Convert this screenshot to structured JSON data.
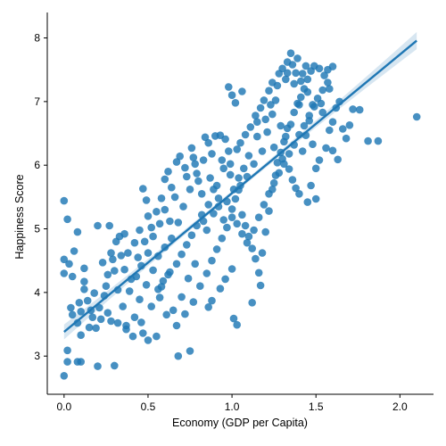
{
  "chart_data": {
    "type": "scatter",
    "title": "",
    "xlabel": "Economy (GDP per Capita)",
    "ylabel": "Happiness Score",
    "xlim": [
      -0.1,
      2.2
    ],
    "ylim": [
      2.4,
      8.4
    ],
    "x_ticks": [
      0.0,
      0.5,
      1.0,
      1.5,
      2.0
    ],
    "x_tick_labels": [
      "0.0",
      "0.5",
      "1.0",
      "1.5",
      "2.0"
    ],
    "y_ticks": [
      3,
      4,
      5,
      6,
      7,
      8
    ],
    "y_tick_labels": [
      "3",
      "4",
      "5",
      "6",
      "7",
      "8"
    ],
    "grid": false,
    "point_color": "#1f77b4",
    "regression": {
      "intercept": 3.38,
      "slope": 2.18,
      "x_range": [
        0.0,
        2.1
      ]
    },
    "points": [
      [
        0.0,
        2.69
      ],
      [
        0.02,
        2.91
      ],
      [
        0.02,
        3.09
      ],
      [
        0.08,
        2.91
      ],
      [
        0.1,
        2.91
      ],
      [
        0.2,
        2.84
      ],
      [
        0.3,
        2.85
      ],
      [
        0.68,
        3.0
      ],
      [
        0.75,
        3.08
      ],
      [
        0.05,
        3.65
      ],
      [
        0.0,
        5.44
      ],
      [
        0.02,
        5.15
      ],
      [
        0.08,
        4.95
      ],
      [
        0.2,
        5.05
      ],
      [
        0.27,
        5.05
      ],
      [
        0.0,
        4.3
      ],
      [
        0.04,
        3.76
      ],
      [
        0.0,
        4.52
      ],
      [
        0.05,
        4.25
      ],
      [
        0.12,
        4.17
      ],
      [
        0.09,
        3.84
      ],
      [
        0.16,
        3.72
      ],
      [
        0.18,
        3.99
      ],
      [
        0.23,
        4.47
      ],
      [
        0.25,
        4.1
      ],
      [
        0.3,
        4.34
      ],
      [
        0.32,
        4.04
      ],
      [
        0.35,
        3.78
      ],
      [
        0.28,
        3.55
      ],
      [
        0.19,
        3.44
      ],
      [
        0.37,
        3.48
      ],
      [
        0.42,
        3.61
      ],
      [
        0.47,
        3.36
      ],
      [
        0.5,
        3.25
      ],
      [
        0.55,
        3.31
      ],
      [
        0.45,
        3.89
      ],
      [
        0.4,
        4.21
      ],
      [
        0.38,
        4.62
      ],
      [
        0.33,
        4.88
      ],
      [
        0.36,
        4.92
      ],
      [
        0.44,
        4.55
      ],
      [
        0.48,
        4.8
      ],
      [
        0.52,
        5.02
      ],
      [
        0.56,
        4.57
      ],
      [
        0.6,
        4.71
      ],
      [
        0.62,
        4.28
      ],
      [
        0.58,
        4.09
      ],
      [
        0.65,
        3.72
      ],
      [
        0.7,
        3.93
      ],
      [
        0.74,
        4.22
      ],
      [
        0.78,
        4.45
      ],
      [
        0.55,
        5.27
      ],
      [
        0.5,
        5.2
      ],
      [
        0.49,
        5.45
      ],
      [
        0.47,
        5.63
      ],
      [
        0.63,
        5.12
      ],
      [
        0.66,
        5.5
      ],
      [
        0.6,
        5.78
      ],
      [
        0.62,
        5.9
      ],
      [
        0.67,
        6.05
      ],
      [
        0.69,
        6.14
      ],
      [
        0.72,
        5.96
      ],
      [
        0.76,
        6.27
      ],
      [
        0.78,
        6.02
      ],
      [
        0.8,
        5.75
      ],
      [
        0.82,
        5.55
      ],
      [
        0.84,
        6.44
      ],
      [
        0.86,
        6.35
      ],
      [
        0.9,
        6.46
      ],
      [
        0.93,
        6.47
      ],
      [
        0.96,
        6.41
      ],
      [
        0.98,
        6.22
      ],
      [
        0.99,
        6.02
      ],
      [
        0.83,
        5.12
      ],
      [
        0.85,
        4.98
      ],
      [
        0.89,
        5.24
      ],
      [
        0.92,
        5.35
      ],
      [
        0.95,
        5.14
      ],
      [
        0.97,
        5.43
      ],
      [
        1.0,
        5.31
      ],
      [
        1.02,
        5.47
      ],
      [
        1.04,
        5.61
      ],
      [
        1.06,
        5.22
      ],
      [
        1.08,
        5.05
      ],
      [
        1.1,
        4.88
      ],
      [
        1.12,
        4.69
      ],
      [
        1.14,
        4.53
      ],
      [
        1.0,
        4.37
      ],
      [
        0.96,
        4.21
      ],
      [
        0.93,
        4.06
      ],
      [
        0.88,
        3.87
      ],
      [
        0.86,
        3.77
      ],
      [
        1.01,
        3.59
      ],
      [
        1.03,
        3.49
      ],
      [
        1.12,
        3.84
      ],
      [
        1.17,
        4.11
      ],
      [
        1.16,
        4.31
      ],
      [
        1.18,
        4.62
      ],
      [
        1.2,
        4.95
      ],
      [
        1.22,
        5.28
      ],
      [
        1.24,
        5.62
      ],
      [
        1.26,
        5.84
      ],
      [
        1.27,
        6.04
      ],
      [
        1.29,
        6.2
      ],
      [
        1.31,
        6.37
      ],
      [
        1.33,
        6.58
      ],
      [
        1.35,
        6.64
      ],
      [
        1.37,
        6.83
      ],
      [
        1.39,
        6.97
      ],
      [
        1.41,
        7.07
      ],
      [
        1.43,
        7.2
      ],
      [
        1.45,
        7.35
      ],
      [
        1.47,
        7.48
      ],
      [
        1.49,
        7.56
      ],
      [
        1.52,
        7.52
      ],
      [
        1.55,
        7.41
      ],
      [
        1.57,
        7.5
      ],
      [
        1.6,
        7.55
      ],
      [
        1.35,
        7.76
      ],
      [
        1.33,
        7.62
      ],
      [
        1.3,
        7.52
      ],
      [
        1.28,
        7.44
      ],
      [
        1.24,
        7.3
      ],
      [
        1.22,
        7.17
      ],
      [
        1.19,
        7.02
      ],
      [
        1.17,
        6.9
      ],
      [
        1.14,
        6.78
      ],
      [
        1.11,
        6.6
      ],
      [
        1.08,
        6.48
      ],
      [
        1.05,
        6.35
      ],
      [
        1.03,
        6.25
      ],
      [
        1.0,
        7.1
      ],
      [
        0.98,
        7.23
      ],
      [
        1.02,
        6.98
      ],
      [
        1.06,
        7.16
      ],
      [
        1.15,
        6.68
      ],
      [
        1.21,
        6.52
      ],
      [
        1.25,
        6.28
      ],
      [
        1.3,
        6.1
      ],
      [
        1.34,
        5.94
      ],
      [
        1.36,
        5.77
      ],
      [
        1.38,
        5.64
      ],
      [
        1.4,
        5.55
      ],
      [
        1.45,
        5.42
      ],
      [
        1.5,
        5.47
      ],
      [
        1.47,
        5.68
      ],
      [
        1.5,
        5.95
      ],
      [
        1.52,
        6.08
      ],
      [
        1.48,
        6.33
      ],
      [
        1.44,
        6.47
      ],
      [
        1.42,
        6.22
      ],
      [
        1.56,
        6.27
      ],
      [
        1.58,
        6.55
      ],
      [
        1.6,
        6.68
      ],
      [
        1.62,
        6.9
      ],
      [
        1.64,
        7.0
      ],
      [
        1.66,
        6.57
      ],
      [
        1.68,
        6.42
      ],
      [
        1.7,
        6.63
      ],
      [
        1.72,
        6.88
      ],
      [
        1.76,
        6.87
      ],
      [
        1.81,
        6.38
      ],
      [
        1.87,
        6.38
      ],
      [
        2.1,
        6.76
      ],
      [
        1.6,
        6.23
      ],
      [
        1.63,
        6.09
      ],
      [
        1.53,
        6.97
      ],
      [
        1.58,
        7.2
      ],
      [
        1.54,
        6.83
      ],
      [
        1.46,
        6.7
      ],
      [
        1.4,
        6.95
      ],
      [
        1.37,
        7.28
      ],
      [
        1.42,
        7.44
      ],
      [
        1.44,
        7.56
      ],
      [
        1.38,
        7.45
      ],
      [
        1.32,
        7.35
      ],
      [
        1.27,
        7.25
      ],
      [
        1.23,
        6.95
      ],
      [
        1.2,
        6.72
      ],
      [
        1.15,
        6.45
      ],
      [
        1.1,
        6.15
      ],
      [
        1.07,
        5.95
      ],
      [
        1.04,
        5.8
      ],
      [
        1.01,
        5.62
      ],
      [
        0.99,
        5.85
      ],
      [
        0.95,
        5.95
      ],
      [
        0.91,
        5.68
      ],
      [
        0.87,
        5.8
      ],
      [
        0.83,
        6.08
      ],
      [
        0.79,
        5.87
      ],
      [
        0.75,
        5.62
      ],
      [
        0.71,
        5.35
      ],
      [
        0.68,
        5.1
      ],
      [
        0.64,
        4.85
      ],
      [
        0.6,
        5.3
      ],
      [
        0.57,
        5.08
      ],
      [
        0.53,
        4.88
      ],
      [
        0.5,
        4.62
      ],
      [
        0.46,
        4.42
      ],
      [
        0.43,
        4.25
      ],
      [
        0.39,
        4.02
      ],
      [
        0.36,
        4.36
      ],
      [
        0.34,
        4.58
      ],
      [
        0.31,
        4.8
      ],
      [
        0.29,
        4.52
      ],
      [
        0.26,
        4.28
      ],
      [
        0.24,
        3.95
      ],
      [
        0.21,
        3.76
      ],
      [
        0.17,
        3.61
      ],
      [
        0.14,
        3.87
      ],
      [
        0.12,
        4.05
      ],
      [
        0.1,
        3.7
      ],
      [
        0.08,
        3.52
      ],
      [
        0.15,
        3.45
      ],
      [
        0.22,
        3.58
      ],
      [
        0.26,
        3.68
      ],
      [
        0.32,
        3.52
      ],
      [
        0.37,
        3.42
      ],
      [
        0.41,
        3.31
      ],
      [
        0.46,
        3.53
      ],
      [
        0.52,
        3.78
      ],
      [
        0.57,
        3.92
      ],
      [
        0.61,
        3.65
      ],
      [
        0.67,
        3.48
      ],
      [
        0.72,
        3.66
      ],
      [
        0.77,
        3.85
      ],
      [
        0.81,
        4.1
      ],
      [
        0.85,
        4.3
      ],
      [
        0.88,
        4.5
      ],
      [
        0.91,
        4.68
      ],
      [
        0.94,
        4.85
      ],
      [
        0.97,
        5.02
      ],
      [
        1.0,
        5.18
      ],
      [
        1.03,
        5.08
      ],
      [
        1.06,
        4.92
      ],
      [
        1.09,
        4.78
      ],
      [
        1.13,
        4.98
      ],
      [
        1.16,
        5.18
      ],
      [
        1.19,
        5.38
      ],
      [
        1.22,
        5.55
      ],
      [
        1.25,
        5.72
      ],
      [
        1.28,
        5.88
      ],
      [
        1.31,
        6.02
      ],
      [
        1.34,
        6.18
      ],
      [
        1.37,
        6.32
      ],
      [
        1.4,
        6.48
      ],
      [
        1.43,
        6.62
      ],
      [
        1.46,
        6.78
      ],
      [
        1.49,
        6.92
      ],
      [
        1.51,
        7.05
      ],
      [
        1.54,
        7.18
      ],
      [
        1.57,
        7.3
      ],
      [
        1.33,
        7.45
      ],
      [
        1.36,
        7.58
      ],
      [
        1.39,
        7.68
      ],
      [
        1.41,
        7.32
      ],
      [
        1.45,
        7.15
      ],
      [
        1.48,
        6.95
      ],
      [
        1.26,
        7.02
      ],
      [
        1.24,
        6.8
      ],
      [
        1.29,
        6.62
      ],
      [
        1.32,
        6.45
      ],
      [
        1.18,
        6.22
      ],
      [
        1.13,
        6.02
      ],
      [
        1.09,
        5.82
      ],
      [
        1.05,
        5.68
      ],
      [
        0.92,
        5.48
      ],
      [
        0.89,
        5.62
      ],
      [
        0.86,
        5.38
      ],
      [
        0.82,
        5.22
      ],
      [
        0.79,
        5.05
      ],
      [
        0.76,
        4.9
      ],
      [
        0.73,
        4.75
      ],
      [
        0.7,
        4.6
      ],
      [
        0.67,
        4.45
      ],
      [
        0.63,
        4.32
      ],
      [
        0.59,
        4.18
      ],
      [
        0.56,
        4.05
      ],
      [
        0.53,
        4.35
      ],
      [
        0.49,
        4.12
      ],
      [
        0.06,
        4.65
      ],
      [
        0.03,
        4.45
      ],
      [
        0.12,
        4.38
      ],
      [
        0.28,
        4.62
      ],
      [
        0.42,
        4.78
      ],
      [
        0.45,
        4.98
      ],
      [
        0.58,
        5.48
      ],
      [
        0.64,
        5.65
      ],
      [
        0.73,
        5.82
      ],
      [
        0.77,
        6.12
      ],
      [
        0.88,
        6.18
      ],
      [
        0.94,
        6.08
      ],
      [
        0.1,
        3.33
      ]
    ]
  }
}
